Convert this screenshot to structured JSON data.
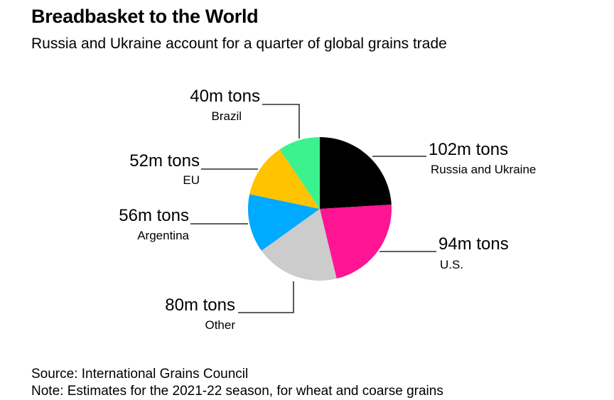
{
  "header": {
    "title": "Breadbasket to the World",
    "subtitle": "Russia and Ukraine account for a quarter of global grains trade"
  },
  "chart_data": {
    "type": "pie",
    "unit": "m tons",
    "slices": [
      {
        "name": "Russia and Ukraine",
        "value": 102,
        "value_label": "102m tons",
        "color": "#000000"
      },
      {
        "name": "U.S.",
        "value": 94,
        "value_label": "94m tons",
        "color": "#ff1493"
      },
      {
        "name": "Other",
        "value": 80,
        "value_label": "80m tons",
        "color": "#cccccc"
      },
      {
        "name": "Argentina",
        "value": 56,
        "value_label": "56m tons",
        "color": "#00aaff"
      },
      {
        "name": "EU",
        "value": 52,
        "value_label": "52m tons",
        "color": "#ffc300"
      },
      {
        "name": "Brazil",
        "value": 40,
        "value_label": "40m tons",
        "color": "#3cf28e"
      }
    ]
  },
  "footer": {
    "source": "Source: International Grains Council",
    "note": "Note: Estimates for the 2021-22 season, for wheat and coarse grains"
  }
}
